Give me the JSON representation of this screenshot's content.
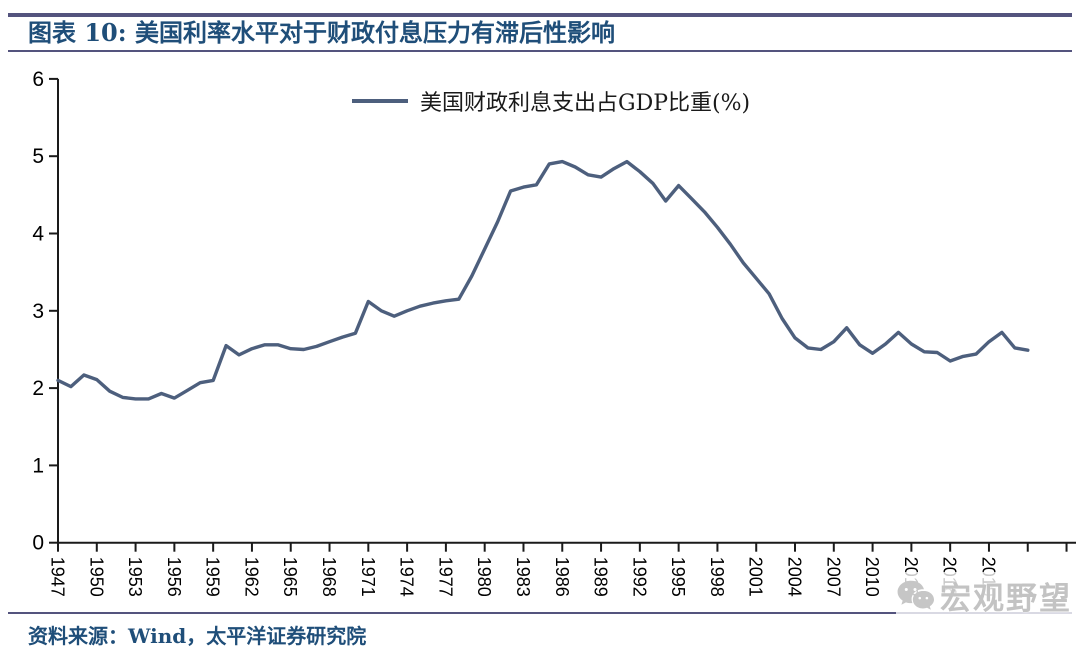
{
  "header": {
    "title": "图表 10:  美国利率水平对于财政付息压力有滞后性影响"
  },
  "legend": {
    "label": "美国财政利息支出占GDP比重(%)"
  },
  "source": {
    "text": "资料来源：Wind，太平洋证券研究院"
  },
  "watermark": {
    "text": "宏观野望",
    "icon": "wechat-icon",
    "color": "#c3c3c3"
  },
  "colors": {
    "line": "#4D5F7D",
    "axis": "#1a1a1a",
    "title_text": "#1F4E79",
    "rules": "#54547E"
  },
  "chart_data": {
    "type": "line",
    "title": "",
    "xlabel": "",
    "ylabel": "",
    "series_name": "美国财政利息支出占GDP比重(%)",
    "x": [
      1947,
      1948,
      1949,
      1950,
      1951,
      1952,
      1953,
      1954,
      1955,
      1956,
      1957,
      1958,
      1959,
      1960,
      1961,
      1962,
      1963,
      1964,
      1965,
      1966,
      1967,
      1968,
      1969,
      1970,
      1971,
      1972,
      1973,
      1974,
      1975,
      1976,
      1977,
      1978,
      1979,
      1980,
      1981,
      1982,
      1983,
      1984,
      1985,
      1986,
      1987,
      1988,
      1989,
      1990,
      1991,
      1992,
      1993,
      1994,
      1995,
      1996,
      1997,
      1998,
      1999,
      2000,
      2001,
      2002,
      2003,
      2004,
      2005,
      2006,
      2007,
      2008,
      2009,
      2010,
      2011,
      2012,
      2013,
      2014,
      2015,
      2016,
      2017,
      2018,
      2019,
      2020,
      2021,
      2022
    ],
    "values": [
      2.1,
      2.02,
      2.17,
      2.11,
      1.96,
      1.88,
      1.86,
      1.86,
      1.93,
      1.87,
      1.97,
      2.07,
      2.1,
      2.55,
      2.43,
      2.51,
      2.56,
      2.56,
      2.51,
      2.5,
      2.54,
      2.6,
      2.66,
      2.71,
      3.12,
      3.0,
      2.93,
      3.0,
      3.06,
      3.1,
      3.13,
      3.15,
      3.45,
      3.8,
      4.15,
      4.55,
      4.6,
      4.63,
      4.9,
      4.93,
      4.86,
      4.76,
      4.73,
      4.84,
      4.93,
      4.8,
      4.65,
      4.42,
      4.62,
      4.45,
      4.28,
      4.08,
      3.86,
      3.62,
      3.42,
      3.22,
      2.9,
      2.65,
      2.52,
      2.5,
      2.6,
      2.78,
      2.56,
      2.45,
      2.57,
      2.72,
      2.57,
      2.47,
      2.46,
      2.35,
      2.41,
      2.44,
      2.6,
      2.72,
      2.52,
      2.49
    ],
    "ylim": [
      0,
      6
    ],
    "yticks": [
      0,
      1,
      2,
      3,
      4,
      5,
      6
    ],
    "xtick_start": 1947,
    "xtick_step": 3,
    "xtick_label_end": 2019,
    "xtick_labels": [
      "1947",
      "1950",
      "1953",
      "1956",
      "1959",
      "1962",
      "1965",
      "1968",
      "1971",
      "1974",
      "1977",
      "1980",
      "1983",
      "1986",
      "1989",
      "1992",
      "1995",
      "1998",
      "2001",
      "2004",
      "2007",
      "2010",
      "2013",
      "2016",
      "2019"
    ],
    "grid": false,
    "legend_position": "top-center"
  }
}
